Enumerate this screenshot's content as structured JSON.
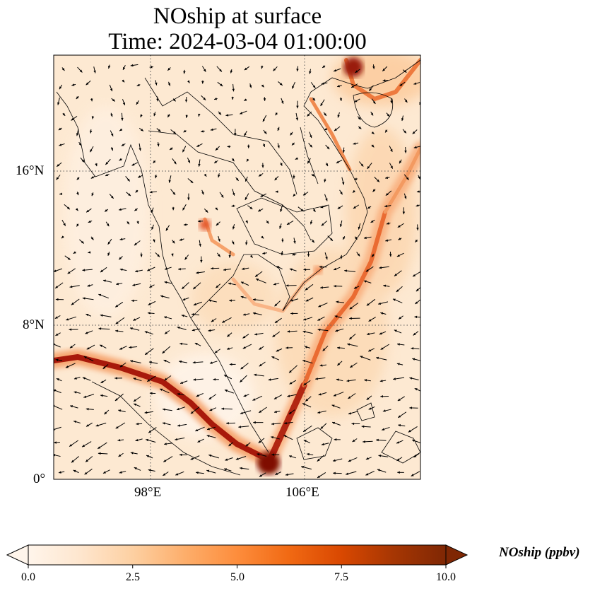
{
  "title_line1": "NOship at surface",
  "title_line2": "Time: 2024-03-04 01:00:00",
  "map": {
    "lon_range": [
      93,
      117
    ],
    "lat_range": [
      0,
      22
    ],
    "lat_ticks": [
      {
        "value": 16,
        "label": "16°N"
      },
      {
        "value": 8,
        "label": "8°N"
      },
      {
        "value": 0,
        "label": "0°"
      }
    ],
    "lon_ticks": [
      {
        "value": 98,
        "label": "98°E"
      },
      {
        "value": 106,
        "label": "106°E"
      }
    ],
    "gridlines": "dotted"
  },
  "colorbar": {
    "label": "NOship (ppbv)",
    "min": 0.0,
    "max": 10.0,
    "extend": "both",
    "colormap": [
      "#fff5eb",
      "#fee6ce",
      "#fdd0a2",
      "#fdae6b",
      "#fd8d3c",
      "#f16913",
      "#d94801",
      "#a63603",
      "#7f2704"
    ],
    "ticks": [
      "0.0",
      "2.5",
      "5.0",
      "7.5",
      "10.0"
    ]
  },
  "chart_data": {
    "type": "heatmap",
    "title": "NOship at surface\nTime: 2024-03-04 01:00:00",
    "variable": "NOship",
    "units": "ppbv",
    "value_range": [
      0,
      10
    ],
    "shipping_lanes_hotspots": [
      {
        "lon": 105.5,
        "lat": 1.2,
        "value": 10
      },
      {
        "lon": 102.0,
        "lat": 3.5,
        "value": 9
      },
      {
        "lon": 99.0,
        "lat": 5.5,
        "value": 8
      },
      {
        "lon": 96.0,
        "lat": 6.2,
        "value": 6
      },
      {
        "lon": 107.5,
        "lat": 4.5,
        "value": 8
      },
      {
        "lon": 109.0,
        "lat": 9.0,
        "value": 5
      },
      {
        "lon": 110.0,
        "lat": 13.5,
        "value": 4
      },
      {
        "lon": 108.5,
        "lat": 21.5,
        "value": 9
      },
      {
        "lon": 101.5,
        "lat": 13.5,
        "value": 3
      }
    ],
    "wind_vectors": "quiver overlay"
  }
}
